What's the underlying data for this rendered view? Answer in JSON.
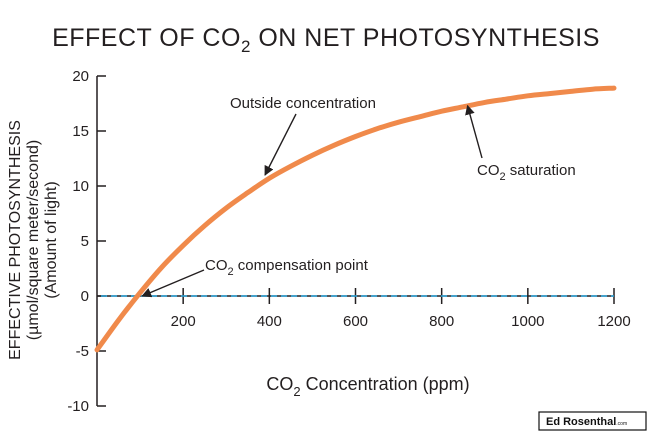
{
  "chart_data": {
    "type": "line",
    "title_main": "EFFECT OF CO",
    "title_sub": "2",
    "title_rest": " ON NET PHOTOSYNTHESIS",
    "ylabel_line1": "EFFECTIVE PHOTOSYNTHESIS",
    "ylabel_line2": "(µmol/square meter/second)",
    "ylabel_line3": "(Amount of light)",
    "xlabel_main": "CO",
    "xlabel_sub": "2",
    "xlabel_rest": " Concentration (ppm)",
    "xlim": [
      0,
      1200
    ],
    "ylim": [
      -10,
      20
    ],
    "xticks": [
      200,
      400,
      600,
      800,
      1000,
      1200
    ],
    "yticks": [
      20,
      15,
      10,
      5,
      0,
      -5,
      -10
    ],
    "series": [
      {
        "name": "Net photosynthesis",
        "color": "#f08a4b",
        "x": [
          0,
          50,
          100,
          150,
          200,
          250,
          300,
          350,
          400,
          450,
          500,
          550,
          600,
          650,
          700,
          750,
          800,
          850,
          900,
          950,
          1000,
          1050,
          1100,
          1150,
          1200
        ],
        "y": [
          -4.9,
          -2.2,
          0.3,
          2.6,
          4.6,
          6.4,
          8.0,
          9.4,
          10.7,
          11.8,
          12.8,
          13.7,
          14.5,
          15.2,
          15.8,
          16.3,
          16.8,
          17.2,
          17.6,
          17.9,
          18.2,
          18.4,
          18.6,
          18.8,
          18.9
        ]
      }
    ],
    "reference_line": {
      "y": 0,
      "color": "#2aa8e0",
      "style": "dashed"
    },
    "annotations": [
      {
        "text": "Outside concentration",
        "sub": "",
        "rest": "",
        "target_x": 390,
        "target_y": 11
      },
      {
        "text": "CO",
        "sub": "2",
        "rest": " saturation",
        "target_x": 860,
        "target_y": 17.3
      },
      {
        "text": "CO",
        "sub": "2",
        "rest": " compensation point",
        "target_x": 105,
        "target_y": 0
      }
    ],
    "logo_text": "Ed Rosenthal",
    "logo_suffix": ".com"
  }
}
